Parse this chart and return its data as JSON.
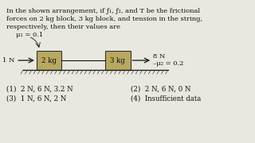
{
  "title_line1": "In the shown arrangement, if ƒ₁, ƒ₂, and T be the frictional",
  "title_line2": "forces on 2 kg block, 3 kg block, and tension in the string,",
  "title_line3": "respectively, then their values are",
  "mu1_label": "μ₁ = 0.1",
  "mu2_label": "–μ₂ = 0.2",
  "force_left_label": "1 N",
  "force_right_label": "→ 8 N",
  "block1_label": "2 kg",
  "block2_label": "3 kg",
  "opt1": "(1)  2 N, 6 N, 3.2 N",
  "opt2": "(2)  2 N, 6 N, 0 N",
  "opt3": "(3)  1 N, 6 N, 2 N",
  "opt4": "(4)  Insufficient data",
  "bg_color": "#e8e8e0",
  "box_facecolor": "#b8a860",
  "box_edgecolor": "#333333",
  "text_color": "#111111",
  "line_color": "#111111",
  "hatch_color": "#444444"
}
